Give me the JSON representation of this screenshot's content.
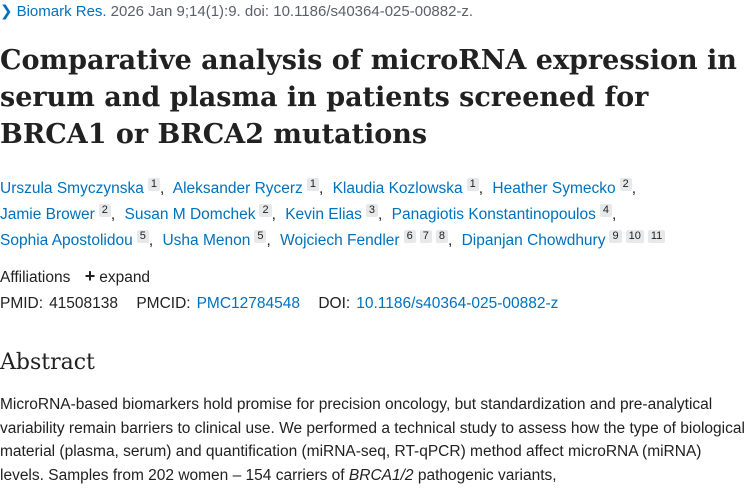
{
  "citation": {
    "journal": "Biomark Res.",
    "details": "2026 Jan 9;14(1):9. doi: 10.1186/s40364-025-00882-z."
  },
  "title": "Comparative analysis of microRNA expression in serum and plasma in patients screened for BRCA1 or BRCA2 mutations",
  "authors": [
    {
      "name": "Urszula Smyczynska",
      "affils": [
        "1"
      ]
    },
    {
      "name": "Aleksander Rycerz",
      "affils": [
        "1"
      ]
    },
    {
      "name": "Klaudia Kozlowska",
      "affils": [
        "1"
      ]
    },
    {
      "name": "Heather Symecko",
      "affils": [
        "2"
      ]
    },
    {
      "name": "Jamie Brower",
      "affils": [
        "2"
      ]
    },
    {
      "name": "Susan M Domchek",
      "affils": [
        "2"
      ]
    },
    {
      "name": "Kevin Elias",
      "affils": [
        "3"
      ]
    },
    {
      "name": "Panagiotis Konstantinopoulos",
      "affils": [
        "4"
      ]
    },
    {
      "name": "Sophia Apostolidou",
      "affils": [
        "5"
      ]
    },
    {
      "name": "Usha Menon",
      "affils": [
        "5"
      ]
    },
    {
      "name": "Wojciech Fendler",
      "affils": [
        "6",
        "7",
        "8"
      ]
    },
    {
      "name": "Dipanjan Chowdhury",
      "affils": [
        "9",
        "10",
        "11"
      ]
    }
  ],
  "affiliations": {
    "label": "Affiliations",
    "expand_label": "expand",
    "expand_icon": "plus-icon"
  },
  "identifiers": {
    "pmid_label": "PMID:",
    "pmid": "41508138",
    "pmcid_label": "PMCID:",
    "pmcid": "PMC12784548",
    "doi_label": "DOI:",
    "doi": "10.1186/s40364-025-00882-z"
  },
  "abstract": {
    "heading": "Abstract",
    "text_1": "MicroRNA-based biomarkers hold promise for precision oncology, but standardization and pre-analytical variability remain barriers to clinical use. We performed a technical study to assess how the type of biological material (plasma, serum) and quantification (miRNA-seq, RT-qPCR) method affect microRNA (miRNA) levels. Samples from 202 women – 154 carriers of ",
    "italic": "BRCA1/2",
    "text_2": " pathogenic variants,"
  },
  "colors": {
    "link": "#0071bc",
    "text": "#212121",
    "muted": "#5b616b",
    "badge_bg": "#e6e8ea"
  }
}
